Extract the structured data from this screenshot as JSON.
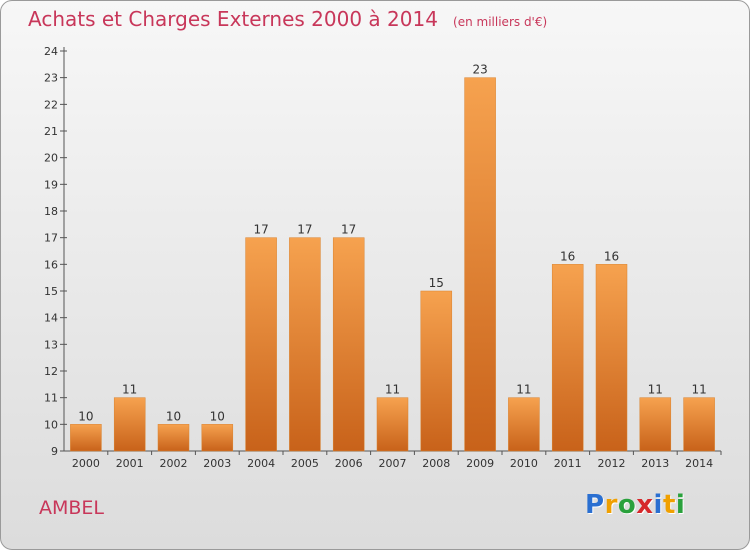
{
  "title": "Achats et Charges Externes 2000 à 2014",
  "subtitle": "(en milliers d'€)",
  "commune": "AMBEL",
  "logo": {
    "letters": [
      "P",
      "r",
      "o",
      "x",
      "i",
      "t",
      "i"
    ],
    "colors": [
      "#2a6fd1",
      "#f0a000",
      "#2aa13c",
      "#d6282b",
      "#2a6fd1",
      "#f0a000",
      "#2aa13c"
    ]
  },
  "colors": {
    "bar_light": "#f6a24f",
    "bar_dark": "#c8621a",
    "title": "#c8375a"
  },
  "chart_data": {
    "type": "bar",
    "title": "Achats et Charges Externes 2000 à 2014",
    "subtitle": "(en milliers d'€)",
    "categories": [
      "2000",
      "2001",
      "2002",
      "2003",
      "2004",
      "2005",
      "2006",
      "2007",
      "2008",
      "2009",
      "2010",
      "2011",
      "2012",
      "2013",
      "2014"
    ],
    "values": [
      10,
      11,
      10,
      10,
      17,
      17,
      17,
      11,
      15,
      23,
      11,
      16,
      16,
      11,
      11
    ],
    "ylim": [
      9,
      24
    ],
    "yticks": [
      9,
      10,
      11,
      12,
      13,
      14,
      15,
      16,
      17,
      18,
      19,
      20,
      21,
      22,
      23,
      24
    ],
    "grid": false,
    "data_labels": true
  }
}
